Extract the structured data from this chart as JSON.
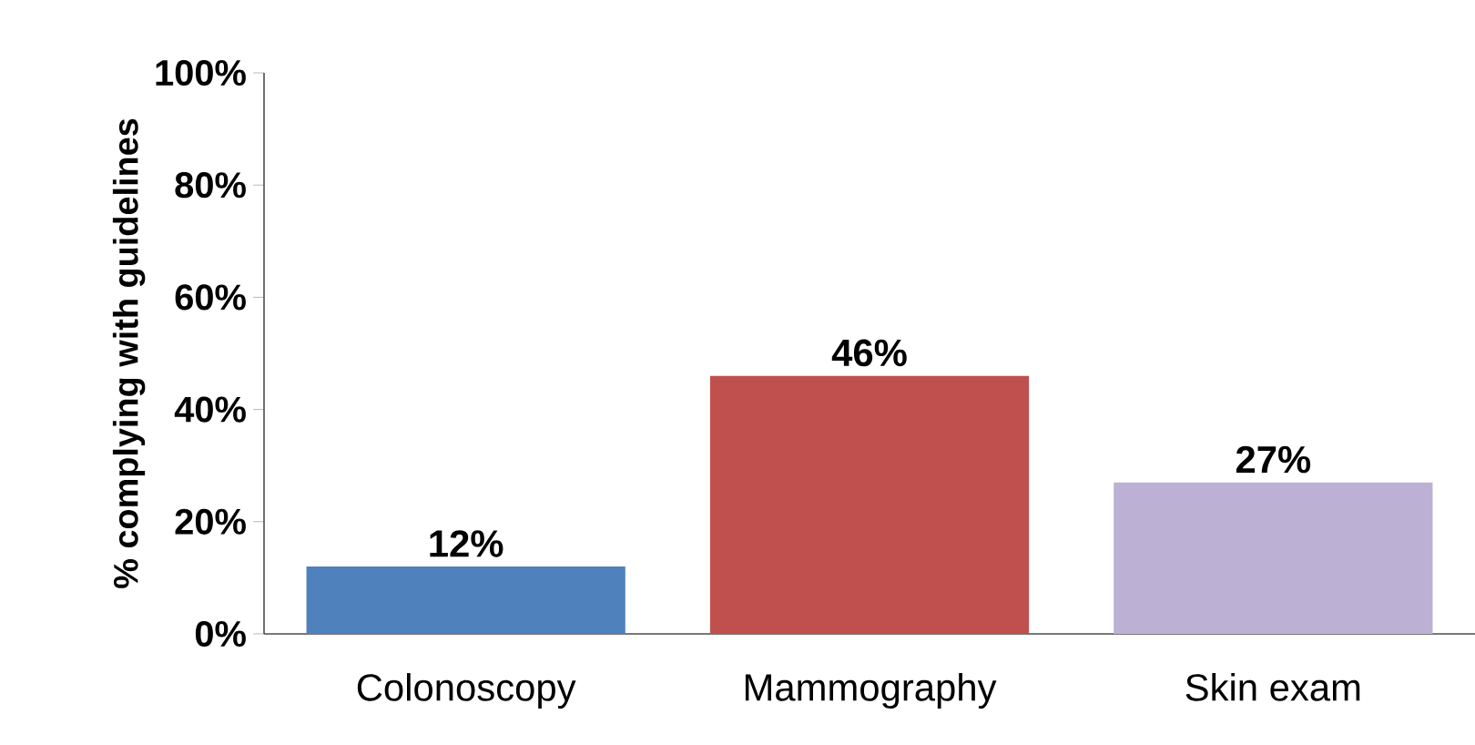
{
  "chart_data": {
    "type": "bar",
    "ylabel": "% complying with guidelines",
    "categories": [
      "Colonoscopy",
      "Mammography",
      "Skin exam"
    ],
    "values": [
      12,
      46,
      27
    ],
    "colors": [
      "#4f81bd",
      "#c0504d",
      "#bcb0d4"
    ],
    "value_labels": [
      "12%",
      "46%",
      "27%"
    ],
    "ylim": [
      0,
      100
    ],
    "yticks": [
      {
        "value": 0,
        "label": "0%"
      },
      {
        "value": 20,
        "label": "20%"
      },
      {
        "value": 40,
        "label": "40%"
      },
      {
        "value": 60,
        "label": "60%"
      },
      {
        "value": 80,
        "label": "80%"
      },
      {
        "value": 100,
        "label": "100%"
      }
    ],
    "grid": false
  }
}
